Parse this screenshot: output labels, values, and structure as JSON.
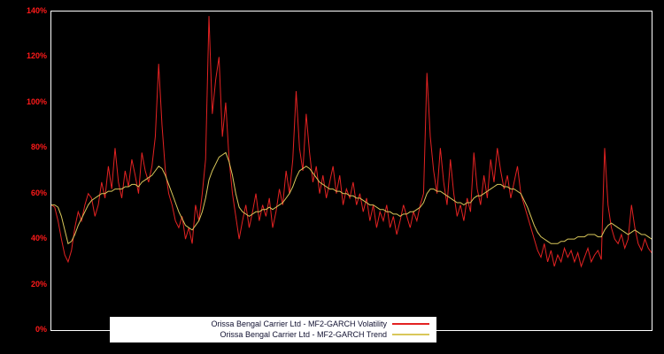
{
  "colors": {
    "background": "#000000",
    "frame": "#ffffff",
    "tick_label_color": "#ff1a1a",
    "legend_background": "#ffffff",
    "legend_text_color": "#101030"
  },
  "legend": {
    "entries": [
      {
        "label": "Orissa Bengal Carrier Ltd - MF2-GARCH Volatility",
        "color": "#e32222"
      },
      {
        "label": "Orissa Bengal Carrier Ltd - MF2-GARCH Trend",
        "color": "#d9c75a"
      }
    ]
  },
  "chart_data": {
    "type": "line",
    "title": "",
    "xlabel": "",
    "ylabel": "",
    "ylim": [
      0,
      140
    ],
    "grid": false,
    "legend_position": "bottom-left",
    "yticks": [
      "0%",
      "20%",
      "40%",
      "60%",
      "80%",
      "100%",
      "120%",
      "140%"
    ],
    "series": [
      {
        "name": "Orissa Bengal Carrier Ltd - MF2-GARCH Volatility",
        "color": "#e32222",
        "values": [
          55,
          54,
          48,
          40,
          33,
          30,
          35,
          45,
          52,
          48,
          55,
          60,
          58,
          50,
          55,
          65,
          58,
          72,
          62,
          80,
          65,
          58,
          70,
          63,
          75,
          68,
          60,
          78,
          70,
          65,
          72,
          85,
          117,
          90,
          70,
          60,
          55,
          48,
          45,
          50,
          40,
          45,
          38,
          55,
          48,
          60,
          75,
          138,
          95,
          110,
          120,
          85,
          100,
          75,
          60,
          50,
          40,
          48,
          55,
          45,
          52,
          60,
          48,
          55,
          50,
          58,
          45,
          52,
          62,
          55,
          70,
          60,
          75,
          105,
          80,
          70,
          95,
          78,
          65,
          72,
          60,
          68,
          58,
          65,
          72,
          60,
          68,
          55,
          62,
          58,
          65,
          55,
          60,
          52,
          58,
          48,
          55,
          45,
          52,
          48,
          55,
          45,
          50,
          42,
          48,
          55,
          50,
          45,
          52,
          48,
          55,
          60,
          113,
          85,
          70,
          60,
          80,
          65,
          55,
          75,
          60,
          50,
          55,
          48,
          58,
          52,
          78,
          62,
          55,
          68,
          58,
          75,
          65,
          80,
          70,
          62,
          68,
          58,
          65,
          72,
          60,
          55,
          50,
          45,
          40,
          35,
          32,
          38,
          30,
          35,
          28,
          33,
          30,
          36,
          32,
          35,
          30,
          34,
          28,
          32,
          36,
          30,
          33,
          35,
          31,
          80,
          55,
          45,
          40,
          38,
          42,
          36,
          40,
          55,
          45,
          38,
          35,
          40,
          36,
          34
        ]
      },
      {
        "name": "Orissa Bengal Carrier Ltd - MF2-GARCH Trend",
        "color": "#d9c75a",
        "values": [
          55,
          55,
          54,
          50,
          44,
          38,
          39,
          42,
          46,
          49,
          52,
          55,
          57,
          58,
          59,
          60,
          60,
          61,
          61,
          62,
          62,
          62,
          63,
          63,
          64,
          64,
          63,
          65,
          66,
          67,
          68,
          70,
          72,
          71,
          68,
          64,
          60,
          56,
          52,
          49,
          46,
          45,
          44,
          46,
          48,
          52,
          58,
          66,
          70,
          73,
          76,
          77,
          78,
          74,
          68,
          60,
          54,
          52,
          51,
          50,
          51,
          52,
          52,
          53,
          53,
          54,
          53,
          54,
          55,
          56,
          58,
          60,
          63,
          67,
          70,
          71,
          72,
          71,
          69,
          67,
          65,
          64,
          63,
          62,
          62,
          61,
          61,
          60,
          60,
          59,
          59,
          58,
          58,
          57,
          56,
          55,
          55,
          54,
          53,
          53,
          52,
          52,
          51,
          51,
          50,
          51,
          51,
          52,
          52,
          53,
          54,
          56,
          60,
          62,
          62,
          61,
          61,
          60,
          59,
          58,
          57,
          56,
          56,
          55,
          56,
          56,
          58,
          59,
          59,
          60,
          61,
          62,
          63,
          64,
          64,
          63,
          63,
          62,
          62,
          61,
          60,
          57,
          54,
          50,
          46,
          43,
          41,
          40,
          39,
          38,
          38,
          38,
          39,
          39,
          40,
          40,
          40,
          41,
          41,
          41,
          42,
          42,
          42,
          41,
          41,
          44,
          46,
          47,
          46,
          45,
          44,
          43,
          42,
          43,
          44,
          43,
          42,
          42,
          41,
          40
        ]
      }
    ]
  }
}
